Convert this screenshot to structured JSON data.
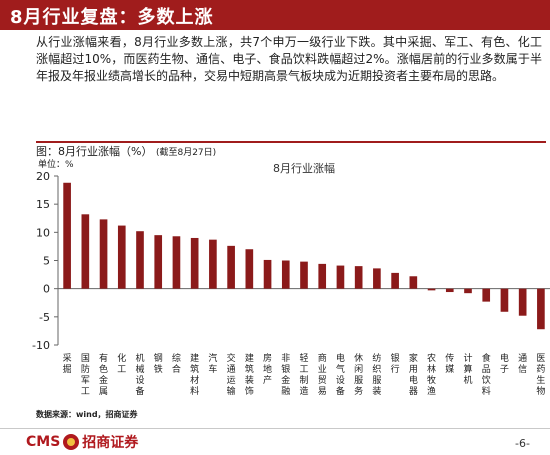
{
  "header": {
    "title": "8月行业复盘：多数上涨"
  },
  "description": "从行业涨幅来看，8月行业多数上涨，共7个申万一级行业下跌。其中采掘、军工、有色、化工涨幅超过10%，而医药生物、通信、电子、食品饮料跌幅超过2%。涨幅居前的行业多数属于半年报及年报业绩高增长的品种，交易中短期高景气板块成为近期投资者主要布局的思路。",
  "chart_header": {
    "title": "图：8月行业涨幅（%）",
    "subtitle": "(截至8月27日)"
  },
  "source": "数据来源：wind，招商证券",
  "footer": {
    "logo_text": "CMS",
    "logo_cn": "招商证券",
    "page": "-6-"
  },
  "colors": {
    "accent": "#a01c1c",
    "bar": "#8b1a1a",
    "axis": "#666666"
  },
  "chart_data": {
    "type": "bar",
    "title": "8月行业涨幅",
    "ylabel": "单位：%",
    "ylim": [
      -10,
      20
    ],
    "yticks": [
      -10,
      -5,
      0,
      5,
      10,
      15,
      20
    ],
    "grid": false,
    "categories": [
      "采掘",
      "国防军工",
      "有色金属",
      "化工",
      "机械设备",
      "钢铁",
      "综合",
      "建筑材料",
      "汽车",
      "交通运输",
      "建筑装饰",
      "房地产",
      "非银金融",
      "轻工制造",
      "商业贸易",
      "电气设备",
      "休闲服务",
      "纺织服装",
      "银行",
      "家用电器",
      "农林牧渔",
      "传媒",
      "计算机",
      "食品饮料",
      "电子",
      "通信",
      "医药生物"
    ],
    "values": [
      18.8,
      13.2,
      12.3,
      11.2,
      10.2,
      9.5,
      9.3,
      9.0,
      8.7,
      7.6,
      7.0,
      5.1,
      5.0,
      4.8,
      4.4,
      4.1,
      4.0,
      3.6,
      2.8,
      2.2,
      -0.3,
      -0.6,
      -0.8,
      -2.3,
      -4.1,
      -4.8,
      -7.2
    ]
  }
}
